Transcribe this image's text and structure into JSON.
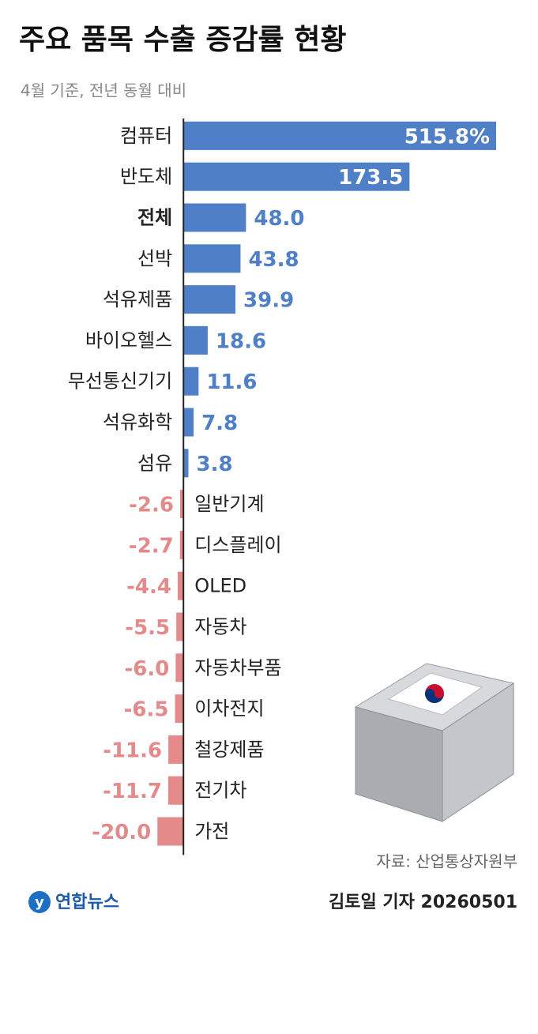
{
  "chart_data": {
    "type": "bar",
    "orientation": "horizontal",
    "title": "주요 품목 수출 증감률 현황",
    "subtitle": "4월 기준, 전년 동월 대비",
    "categories": [
      "컴퓨터",
      "반도체",
      "전체",
      "선박",
      "석유제품",
      "바이오헬스",
      "무선통신기기",
      "석유화학",
      "섬유",
      "일반기계",
      "디스플레이",
      "OLED",
      "자동차",
      "자동차부품",
      "이차전지",
      "철강제품",
      "전기차",
      "가전"
    ],
    "values": [
      515.8,
      173.5,
      48.0,
      43.8,
      39.9,
      18.6,
      11.6,
      7.8,
      3.8,
      -2.6,
      -2.7,
      -4.4,
      -5.5,
      -6.0,
      -6.5,
      -11.6,
      -11.7,
      -20.0
    ],
    "value_labels": [
      "515.8%",
      "173.5",
      "48.0",
      "43.8",
      "39.9",
      "18.6",
      "11.6",
      "7.8",
      "3.8",
      "-2.6",
      "-2.7",
      "-4.4",
      "-5.5",
      "-6.0",
      "-6.5",
      "-11.6",
      "-11.7",
      "-20.0"
    ],
    "positive_color": "#4f7fc7",
    "negative_color": "#e48a8b",
    "xlim": [
      -25,
      240
    ],
    "source": "자료: 산업통상자원부",
    "agency": "연합뉴스",
    "byline": "김토일 기자 20260501"
  }
}
